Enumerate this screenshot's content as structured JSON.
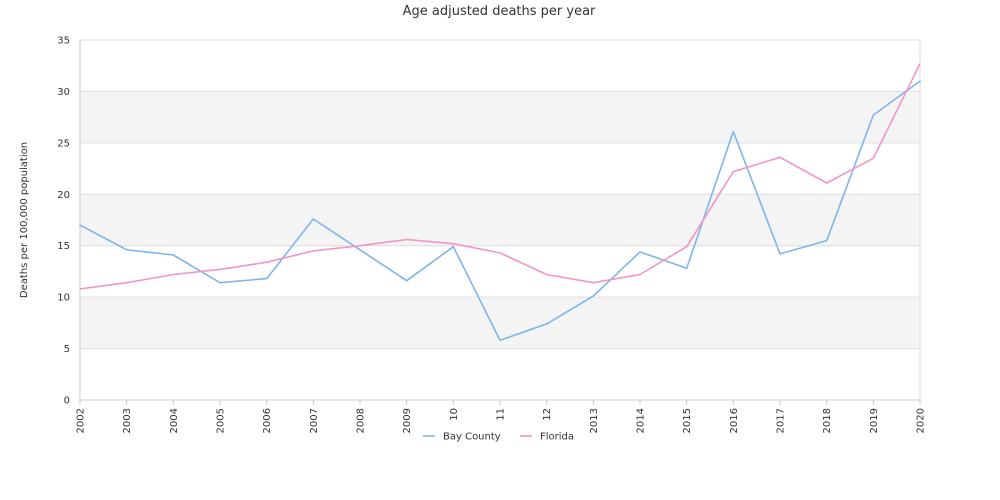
{
  "chart_data": {
    "type": "line",
    "title": "Age adjusted deaths per year",
    "xlabel": "",
    "ylabel": "Deaths per 100,000 population",
    "categories": [
      "2002",
      "2003",
      "2004",
      "2005",
      "2006",
      "2007",
      "2008",
      "2009",
      "10",
      "11",
      "12",
      "2013",
      "2014",
      "2015",
      "2016",
      "2017",
      "2018",
      "2019",
      "2020"
    ],
    "ylim": [
      0,
      35
    ],
    "yticks": [
      0,
      5,
      10,
      15,
      20,
      25,
      30,
      35
    ],
    "grid": true,
    "legend": "bottom-center",
    "series": [
      {
        "name": "Bay County",
        "color": "#7cb5ec",
        "values": [
          17.0,
          14.6,
          14.1,
          11.4,
          11.8,
          17.6,
          14.6,
          11.6,
          14.9,
          5.8,
          7.4,
          10.1,
          14.4,
          12.8,
          26.1,
          14.2,
          15.5,
          27.7,
          31.0
        ]
      },
      {
        "name": "Florida",
        "color": "#f195c5",
        "values": [
          10.8,
          11.4,
          12.2,
          12.7,
          13.4,
          14.5,
          15.0,
          15.6,
          15.2,
          14.3,
          12.2,
          11.4,
          12.2,
          14.9,
          22.2,
          23.6,
          21.1,
          23.5,
          32.7
        ]
      }
    ],
    "band_color": "#f4f4f4",
    "grid_color": "#dddddd"
  }
}
